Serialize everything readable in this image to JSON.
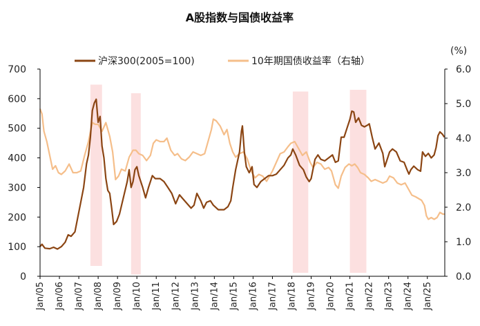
{
  "chart_data": {
    "type": "line",
    "title": "A股指数与国债收益率",
    "right_unit_label": "(%)",
    "colors": {
      "hs300": "#8B4513",
      "bond": "#F5BE8A",
      "shade": "#FCE0E0",
      "axis": "#000000"
    },
    "left_axis": {
      "min": 0,
      "max": 700,
      "ticks": [
        0,
        100,
        200,
        300,
        400,
        500,
        600,
        700
      ]
    },
    "right_axis": {
      "min": 0,
      "max": 6,
      "ticks": [
        "0.0",
        "1.0",
        "2.0",
        "3.0",
        "4.0",
        "5.0",
        "6.0"
      ]
    },
    "x_range": [
      2005.0,
      2025.9
    ],
    "x_ticks": [
      {
        "label": "Jan/05",
        "year": 2005
      },
      {
        "label": "Jan/06",
        "year": 2006
      },
      {
        "label": "Jan/07",
        "year": 2007
      },
      {
        "label": "Jan/08",
        "year": 2008
      },
      {
        "label": "Jan/09",
        "year": 2009
      },
      {
        "label": "Jan/10",
        "year": 2010
      },
      {
        "label": "Jan/11",
        "year": 2011
      },
      {
        "label": "Jan/12",
        "year": 2012
      },
      {
        "label": "Jan/13",
        "year": 2013
      },
      {
        "label": "Jan/14",
        "year": 2014
      },
      {
        "label": "Jan/15",
        "year": 2015
      },
      {
        "label": "Jan/16",
        "year": 2016
      },
      {
        "label": "Jan/17",
        "year": 2017
      },
      {
        "label": "Jan/18",
        "year": 2018
      },
      {
        "label": "Jan/19",
        "year": 2019
      },
      {
        "label": "Jan/20",
        "year": 2020
      },
      {
        "label": "Jan/21",
        "year": 2021
      },
      {
        "label": "Jan/22",
        "year": 2022
      },
      {
        "label": "Jan/23",
        "year": 2023
      },
      {
        "label": "Jan/24",
        "year": 2024
      },
      {
        "label": "Jan/25",
        "year": 2025
      }
    ],
    "shaded_periods": [
      {
        "start": 2007.6,
        "end": 2008.2,
        "top": 5.55,
        "bottom": 0.3
      },
      {
        "start": 2009.7,
        "end": 2010.2,
        "top": 5.3,
        "bottom": 0.05
      },
      {
        "start": 2018.05,
        "end": 2018.85,
        "top": 5.35,
        "bottom": 0.1
      },
      {
        "start": 2021.0,
        "end": 2021.85,
        "top": 5.4,
        "bottom": 0.1
      }
    ],
    "series": [
      {
        "name": "沪深300(2005=100)",
        "axis": "left",
        "points": [
          [
            2005.0,
            100
          ],
          [
            2005.1,
            108
          ],
          [
            2005.25,
            95
          ],
          [
            2005.5,
            93
          ],
          [
            2005.7,
            98
          ],
          [
            2005.9,
            92
          ],
          [
            2006.1,
            100
          ],
          [
            2006.3,
            115
          ],
          [
            2006.45,
            140
          ],
          [
            2006.6,
            135
          ],
          [
            2006.8,
            150
          ],
          [
            2006.95,
            200
          ],
          [
            2007.1,
            250
          ],
          [
            2007.25,
            300
          ],
          [
            2007.4,
            380
          ],
          [
            2007.5,
            410
          ],
          [
            2007.6,
            470
          ],
          [
            2007.7,
            560
          ],
          [
            2007.8,
            585
          ],
          [
            2007.9,
            598
          ],
          [
            2008.0,
            520
          ],
          [
            2008.1,
            540
          ],
          [
            2008.2,
            440
          ],
          [
            2008.3,
            400
          ],
          [
            2008.4,
            330
          ],
          [
            2008.5,
            290
          ],
          [
            2008.6,
            280
          ],
          [
            2008.7,
            230
          ],
          [
            2008.8,
            175
          ],
          [
            2008.95,
            185
          ],
          [
            2009.1,
            210
          ],
          [
            2009.3,
            265
          ],
          [
            2009.5,
            320
          ],
          [
            2009.6,
            360
          ],
          [
            2009.7,
            300
          ],
          [
            2009.8,
            320
          ],
          [
            2009.9,
            360
          ],
          [
            2010.0,
            370
          ],
          [
            2010.1,
            340
          ],
          [
            2010.3,
            300
          ],
          [
            2010.45,
            265
          ],
          [
            2010.6,
            300
          ],
          [
            2010.8,
            340
          ],
          [
            2010.95,
            330
          ],
          [
            2011.2,
            330
          ],
          [
            2011.4,
            320
          ],
          [
            2011.6,
            300
          ],
          [
            2011.8,
            280
          ],
          [
            2012.0,
            245
          ],
          [
            2012.2,
            275
          ],
          [
            2012.4,
            260
          ],
          [
            2012.6,
            245
          ],
          [
            2012.8,
            230
          ],
          [
            2012.95,
            240
          ],
          [
            2013.1,
            280
          ],
          [
            2013.3,
            255
          ],
          [
            2013.45,
            230
          ],
          [
            2013.6,
            250
          ],
          [
            2013.8,
            255
          ],
          [
            2013.95,
            240
          ],
          [
            2014.2,
            225
          ],
          [
            2014.5,
            225
          ],
          [
            2014.7,
            235
          ],
          [
            2014.85,
            255
          ],
          [
            2014.95,
            300
          ],
          [
            2015.1,
            360
          ],
          [
            2015.3,
            420
          ],
          [
            2015.4,
            490
          ],
          [
            2015.45,
            508
          ],
          [
            2015.55,
            420
          ],
          [
            2015.65,
            370
          ],
          [
            2015.8,
            350
          ],
          [
            2015.95,
            370
          ],
          [
            2016.05,
            310
          ],
          [
            2016.2,
            300
          ],
          [
            2016.4,
            320
          ],
          [
            2016.6,
            330
          ],
          [
            2016.8,
            340
          ],
          [
            2017.0,
            340
          ],
          [
            2017.2,
            345
          ],
          [
            2017.4,
            360
          ],
          [
            2017.6,
            375
          ],
          [
            2017.8,
            400
          ],
          [
            2017.95,
            410
          ],
          [
            2018.05,
            430
          ],
          [
            2018.2,
            410
          ],
          [
            2018.4,
            375
          ],
          [
            2018.6,
            360
          ],
          [
            2018.75,
            335
          ],
          [
            2018.9,
            320
          ],
          [
            2019.0,
            330
          ],
          [
            2019.2,
            395
          ],
          [
            2019.35,
            410
          ],
          [
            2019.5,
            395
          ],
          [
            2019.7,
            390
          ],
          [
            2019.9,
            400
          ],
          [
            2020.1,
            410
          ],
          [
            2020.25,
            385
          ],
          [
            2020.4,
            390
          ],
          [
            2020.55,
            470
          ],
          [
            2020.7,
            470
          ],
          [
            2020.85,
            500
          ],
          [
            2021.0,
            530
          ],
          [
            2021.1,
            558
          ],
          [
            2021.2,
            555
          ],
          [
            2021.3,
            520
          ],
          [
            2021.45,
            535
          ],
          [
            2021.6,
            510
          ],
          [
            2021.75,
            505
          ],
          [
            2021.9,
            510
          ],
          [
            2022.0,
            515
          ],
          [
            2022.15,
            470
          ],
          [
            2022.3,
            430
          ],
          [
            2022.5,
            450
          ],
          [
            2022.7,
            415
          ],
          [
            2022.8,
            370
          ],
          [
            2022.9,
            390
          ],
          [
            2023.05,
            420
          ],
          [
            2023.2,
            430
          ],
          [
            2023.4,
            420
          ],
          [
            2023.6,
            390
          ],
          [
            2023.8,
            385
          ],
          [
            2023.95,
            360
          ],
          [
            2024.05,
            345
          ],
          [
            2024.15,
            360
          ],
          [
            2024.3,
            372
          ],
          [
            2024.5,
            360
          ],
          [
            2024.65,
            355
          ],
          [
            2024.75,
            420
          ],
          [
            2024.9,
            405
          ],
          [
            2025.05,
            415
          ],
          [
            2025.2,
            400
          ],
          [
            2025.35,
            410
          ],
          [
            2025.45,
            435
          ],
          [
            2025.55,
            475
          ],
          [
            2025.65,
            488
          ],
          [
            2025.78,
            480
          ],
          [
            2025.88,
            470
          ]
        ]
      },
      {
        "name": "10年期国债收益率（右轴）",
        "axis": "right",
        "points": [
          [
            2005.0,
            4.85
          ],
          [
            2005.1,
            4.7
          ],
          [
            2005.2,
            4.2
          ],
          [
            2005.35,
            3.9
          ],
          [
            2005.5,
            3.5
          ],
          [
            2005.65,
            3.1
          ],
          [
            2005.8,
            3.2
          ],
          [
            2005.95,
            3.0
          ],
          [
            2006.1,
            2.95
          ],
          [
            2006.3,
            3.05
          ],
          [
            2006.5,
            3.25
          ],
          [
            2006.7,
            3.0
          ],
          [
            2006.9,
            3.0
          ],
          [
            2007.1,
            3.05
          ],
          [
            2007.3,
            3.5
          ],
          [
            2007.5,
            3.9
          ],
          [
            2007.7,
            4.45
          ],
          [
            2007.85,
            4.4
          ],
          [
            2008.0,
            4.4
          ],
          [
            2008.2,
            4.2
          ],
          [
            2008.4,
            4.45
          ],
          [
            2008.6,
            4.05
          ],
          [
            2008.75,
            3.6
          ],
          [
            2008.9,
            2.8
          ],
          [
            2009.05,
            2.9
          ],
          [
            2009.2,
            3.1
          ],
          [
            2009.4,
            3.05
          ],
          [
            2009.6,
            3.45
          ],
          [
            2009.8,
            3.65
          ],
          [
            2009.95,
            3.65
          ],
          [
            2010.1,
            3.55
          ],
          [
            2010.3,
            3.5
          ],
          [
            2010.5,
            3.35
          ],
          [
            2010.7,
            3.5
          ],
          [
            2010.85,
            3.85
          ],
          [
            2011.0,
            3.95
          ],
          [
            2011.2,
            3.9
          ],
          [
            2011.4,
            3.9
          ],
          [
            2011.55,
            4.0
          ],
          [
            2011.75,
            3.65
          ],
          [
            2011.95,
            3.5
          ],
          [
            2012.1,
            3.55
          ],
          [
            2012.3,
            3.4
          ],
          [
            2012.5,
            3.35
          ],
          [
            2012.7,
            3.45
          ],
          [
            2012.9,
            3.6
          ],
          [
            2013.1,
            3.55
          ],
          [
            2013.3,
            3.5
          ],
          [
            2013.5,
            3.55
          ],
          [
            2013.7,
            3.95
          ],
          [
            2013.85,
            4.25
          ],
          [
            2013.95,
            4.55
          ],
          [
            2014.1,
            4.5
          ],
          [
            2014.3,
            4.35
          ],
          [
            2014.5,
            4.1
          ],
          [
            2014.65,
            4.25
          ],
          [
            2014.8,
            3.85
          ],
          [
            2014.95,
            3.6
          ],
          [
            2015.1,
            3.45
          ],
          [
            2015.3,
            3.55
          ],
          [
            2015.5,
            3.6
          ],
          [
            2015.7,
            3.4
          ],
          [
            2015.9,
            3.05
          ],
          [
            2016.1,
            2.85
          ],
          [
            2016.3,
            2.95
          ],
          [
            2016.5,
            2.9
          ],
          [
            2016.7,
            2.75
          ],
          [
            2016.9,
            2.95
          ],
          [
            2017.0,
            3.05
          ],
          [
            2017.2,
            3.3
          ],
          [
            2017.4,
            3.55
          ],
          [
            2017.6,
            3.6
          ],
          [
            2017.8,
            3.75
          ],
          [
            2017.95,
            3.85
          ],
          [
            2018.15,
            3.9
          ],
          [
            2018.35,
            3.7
          ],
          [
            2018.55,
            3.5
          ],
          [
            2018.75,
            3.6
          ],
          [
            2018.95,
            3.3
          ],
          [
            2019.1,
            3.15
          ],
          [
            2019.3,
            3.3
          ],
          [
            2019.5,
            3.25
          ],
          [
            2019.7,
            3.1
          ],
          [
            2019.9,
            3.15
          ],
          [
            2020.05,
            3.05
          ],
          [
            2020.25,
            2.65
          ],
          [
            2020.4,
            2.55
          ],
          [
            2020.55,
            2.9
          ],
          [
            2020.75,
            3.15
          ],
          [
            2020.95,
            3.25
          ],
          [
            2021.1,
            3.2
          ],
          [
            2021.25,
            3.25
          ],
          [
            2021.4,
            3.15
          ],
          [
            2021.55,
            3.0
          ],
          [
            2021.75,
            2.95
          ],
          [
            2021.95,
            2.85
          ],
          [
            2022.1,
            2.75
          ],
          [
            2022.3,
            2.8
          ],
          [
            2022.5,
            2.75
          ],
          [
            2022.7,
            2.7
          ],
          [
            2022.9,
            2.75
          ],
          [
            2023.05,
            2.9
          ],
          [
            2023.25,
            2.85
          ],
          [
            2023.45,
            2.7
          ],
          [
            2023.65,
            2.65
          ],
          [
            2023.85,
            2.7
          ],
          [
            2024.0,
            2.55
          ],
          [
            2024.2,
            2.35
          ],
          [
            2024.4,
            2.3
          ],
          [
            2024.55,
            2.25
          ],
          [
            2024.7,
            2.2
          ],
          [
            2024.85,
            2.05
          ],
          [
            2024.95,
            1.75
          ],
          [
            2025.05,
            1.65
          ],
          [
            2025.2,
            1.7
          ],
          [
            2025.35,
            1.65
          ],
          [
            2025.5,
            1.7
          ],
          [
            2025.65,
            1.85
          ],
          [
            2025.8,
            1.8
          ],
          [
            2025.9,
            1.8
          ]
        ]
      }
    ]
  }
}
